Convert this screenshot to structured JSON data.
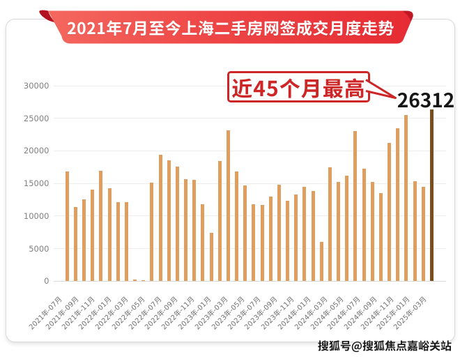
{
  "banner": {
    "title": "2021年7月至今上海二手房网签成交月度走势"
  },
  "annotation": {
    "text": "近45个月最高",
    "value": "26312"
  },
  "watermark": {
    "text": "搜狐号@搜狐焦点嘉峪关站"
  },
  "chart_data": {
    "type": "bar",
    "title": "2021年7月至今上海二手房网签成交月度走势",
    "xlabel": "",
    "ylabel": "",
    "ylim": [
      0,
      30000
    ],
    "y_ticks": [
      0,
      5000,
      10000,
      15000,
      20000,
      25000,
      30000
    ],
    "grid": true,
    "legend": false,
    "x_tick_labels": [
      "2021年-07月",
      "2021年-09月",
      "2021年-11月",
      "2022年-01月",
      "2022年-03月",
      "2022年-05月",
      "2022年-07月",
      "2022年-09月",
      "2022年-11月",
      "2023年-01月",
      "2023年-03月",
      "2023年-05月",
      "2023年-07月",
      "2023年-09月",
      "2023年-11月",
      "2024年-01月",
      "2024年-03月",
      "2024年-05月",
      "2024年-07月",
      "2024年-09月",
      "2024年-11月",
      "2025年-01月",
      "2025年-03月"
    ],
    "categories": [
      "2021年07月",
      "2021年08月",
      "2021年09月",
      "2021年10月",
      "2021年11月",
      "2021年12月",
      "2022年01月",
      "2022年02月",
      "2022年04月",
      "2022年05月",
      "2022年06月",
      "2022年07月",
      "2022年08月",
      "2022年09月",
      "2022年10月",
      "2022年11月",
      "2022年12月",
      "2023年01月",
      "2023年02月",
      "2023年03月",
      "2023年04月",
      "2023年05月",
      "2023年06月",
      "2023年07月",
      "2023年08月",
      "2023年09月",
      "2023年10月",
      "2023年11月",
      "2023年12月",
      "2024年01月",
      "2024年02月",
      "2024年03月",
      "2024年04月",
      "2024年05月",
      "2024年06月",
      "2024年07月",
      "2024年08月",
      "2024年09月",
      "2024年10月",
      "2024年11月",
      "2024年12月",
      "2025年01月",
      "2025年02月",
      "2025年03月"
    ],
    "values": [
      16830,
      11350,
      12520,
      14080,
      16990,
      14250,
      12150,
      12120,
      200,
      150,
      15080,
      19400,
      18550,
      17600,
      15700,
      15590,
      11810,
      7450,
      18390,
      23180,
      16850,
      14650,
      11820,
      11740,
      13000,
      14770,
      12370,
      13270,
      14500,
      13880,
      6050,
      17480,
      15280,
      16160,
      23050,
      17310,
      15200,
      13480,
      21200,
      23440,
      25490,
      15320,
      14490,
      26312
    ],
    "highlight_index": 43,
    "highlight_value_label": "26312",
    "annotation": "近45个月最高",
    "bar_color": "#dd9e5f",
    "highlight_color": "#7a4e1c",
    "colors": {
      "banner_red": "#e93a40",
      "annotation_red": "#ce2627",
      "bar_orange": "#dd9e5f",
      "highlight_brown": "#7a4e1c"
    }
  }
}
